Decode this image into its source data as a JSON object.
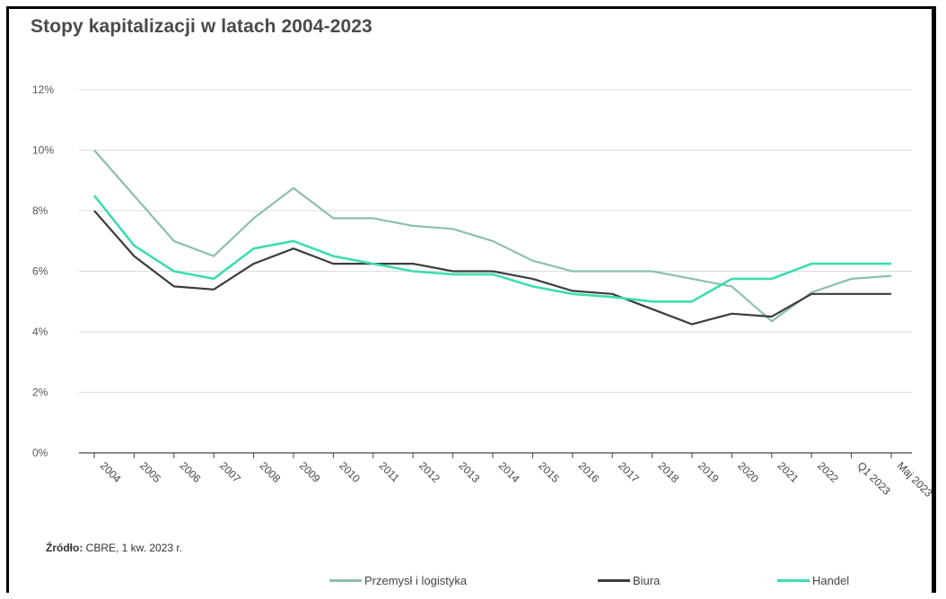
{
  "title": "Stopy kapitalizacji w latach 2004-2023",
  "source": {
    "label": "Źródło:",
    "text": " CBRE, 1 kw. 2023 r."
  },
  "colors": {
    "przemysl": "#8cbfae",
    "biura": "#3c3c3c",
    "handel": "#3ddcb0",
    "grid": "#dcdcdc",
    "axis": "#444444"
  },
  "chart_data": {
    "type": "line",
    "title": "Stopy kapitalizacji w latach 2004-2023",
    "categories": [
      "2004",
      "2005",
      "2006",
      "2007",
      "2008",
      "2009",
      "2010",
      "2011",
      "2012",
      "2013",
      "2014",
      "2015",
      "2016",
      "2017",
      "2018",
      "2019",
      "2020",
      "2021",
      "2022",
      "Q1 2023",
      "Maj 2023"
    ],
    "y_ticks": [
      "0%",
      "2%",
      "4%",
      "6%",
      "8%",
      "10%",
      "12%"
    ],
    "ylim": [
      0,
      12
    ],
    "grid": true,
    "legend": "bottom",
    "series": [
      {
        "name": "Przemysł i logistyka",
        "color": "#8cbfae",
        "values": [
          10.0,
          8.5,
          7.0,
          6.5,
          7.75,
          8.75,
          7.75,
          7.75,
          7.5,
          7.4,
          7.0,
          6.35,
          6.0,
          6.0,
          6.0,
          5.75,
          5.5,
          4.35,
          5.3,
          5.75,
          5.85
        ]
      },
      {
        "name": "Biura",
        "color": "#3c3c3c",
        "values": [
          8.0,
          6.5,
          5.5,
          5.4,
          6.25,
          6.75,
          6.25,
          6.25,
          6.25,
          6.0,
          6.0,
          5.75,
          5.35,
          5.25,
          4.75,
          4.25,
          4.6,
          4.5,
          5.25,
          5.25,
          5.25
        ]
      },
      {
        "name": "Handel",
        "color": "#3ddcb0",
        "values": [
          8.5,
          6.85,
          6.0,
          5.75,
          6.75,
          7.0,
          6.5,
          6.25,
          6.0,
          5.9,
          5.9,
          5.5,
          5.25,
          5.15,
          5.0,
          5.0,
          5.75,
          5.75,
          6.25,
          6.25,
          6.25
        ]
      }
    ]
  }
}
